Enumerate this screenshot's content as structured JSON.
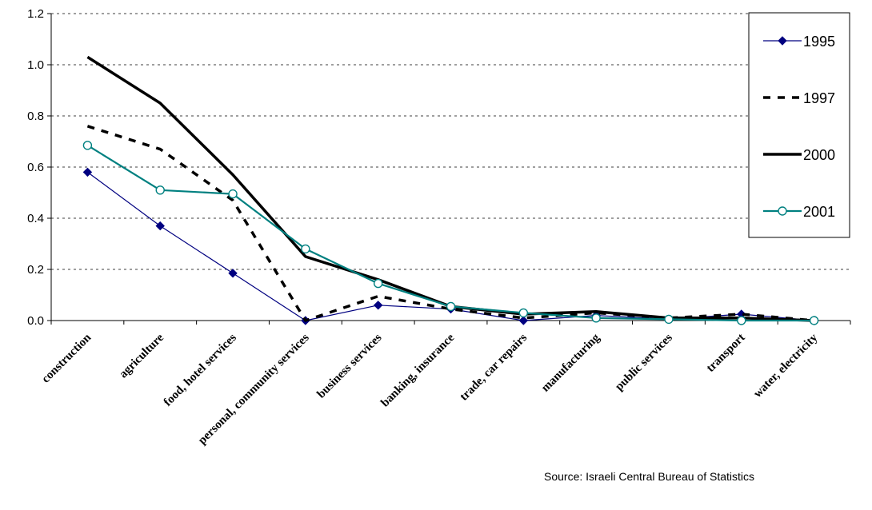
{
  "chart_data": {
    "type": "line",
    "title": "",
    "xlabel": "",
    "ylabel": "",
    "ylim": [
      0,
      1.2
    ],
    "yticks": [
      "0.0",
      "0.2",
      "0.4",
      "0.6",
      "0.8",
      "1.0",
      "1.2"
    ],
    "grid": "horizontal-dashed",
    "legend_position": "top-right",
    "categories": [
      "construction",
      "agriculture",
      "food, hotel services",
      "personal, community services",
      "business services",
      "banking, insurance",
      "trade, car repairs",
      "manufacturing",
      "public services",
      "transport",
      "water, electricity"
    ],
    "series": [
      {
        "name": "1995",
        "color": "#000080",
        "line_style": "thin-solid",
        "marker": "filled-diamond",
        "values": [
          0.58,
          0.37,
          0.185,
          0.0,
          0.06,
          0.045,
          0.0,
          0.02,
          0.005,
          0.025,
          0.0
        ]
      },
      {
        "name": "1997",
        "color": "#000000",
        "line_style": "thick-dashed",
        "marker": "none",
        "values": [
          0.76,
          0.67,
          0.47,
          0.0,
          0.095,
          0.045,
          0.01,
          0.03,
          0.01,
          0.025,
          0.0
        ]
      },
      {
        "name": "2000",
        "color": "#000000",
        "line_style": "thick-solid",
        "marker": "none",
        "values": [
          1.03,
          0.85,
          0.57,
          0.25,
          0.16,
          0.055,
          0.025,
          0.035,
          0.01,
          0.01,
          0.0
        ]
      },
      {
        "name": "2001",
        "color": "#008080",
        "line_style": "medium-solid",
        "marker": "hollow-circle",
        "values": [
          0.685,
          0.51,
          0.495,
          0.28,
          0.145,
          0.055,
          0.03,
          0.01,
          0.005,
          0.0,
          0.0
        ]
      }
    ]
  },
  "source_note": "Source: Israeli Central Bureau of Statistics"
}
